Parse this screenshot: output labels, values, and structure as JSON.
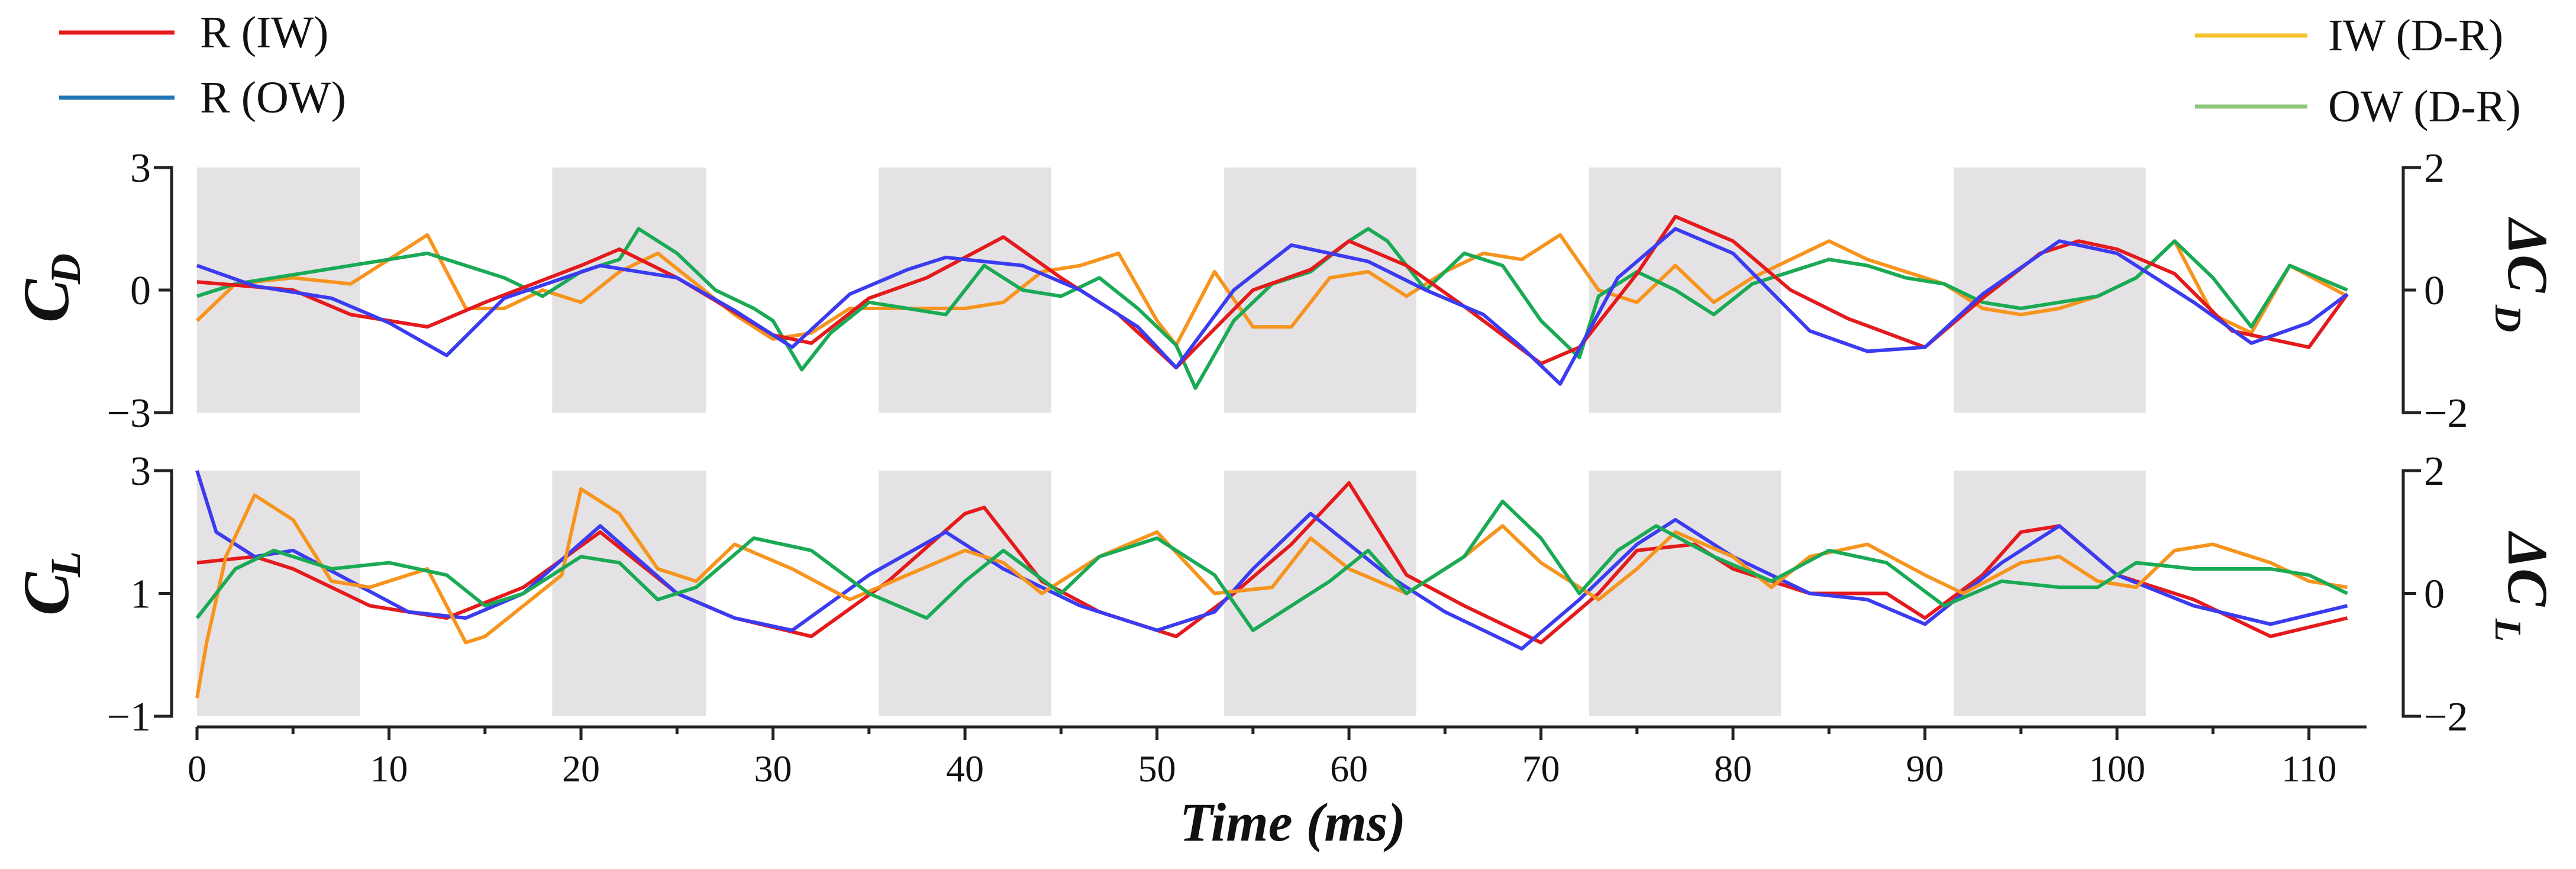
{
  "chart_data": {
    "type": "line",
    "xlabel": "Time (ms)",
    "x_ticks": [
      "0",
      "10",
      "20",
      "30",
      "40",
      "50",
      "60",
      "70",
      "80",
      "90",
      "100",
      "110"
    ],
    "xlim": [
      0,
      113
    ],
    "shaded_intervals": [
      [
        0,
        8.5
      ],
      [
        18.5,
        26.5
      ],
      [
        35.5,
        44.5
      ],
      [
        53.5,
        63.5
      ],
      [
        72.5,
        82.5
      ],
      [
        91.5,
        101.5
      ]
    ],
    "colors": {
      "r_iw": "#e41a1c",
      "r_ow": "#3b3bf0",
      "iw_dr": "#f7941d",
      "ow_dr": "#1aaa55",
      "shade": "#e4e2e4"
    },
    "legend": [
      {
        "label": "R (IW)",
        "color": "#e41a1c"
      },
      {
        "label": "R (OW)",
        "color": "#1f77b4"
      },
      {
        "label": "IW (D-R)",
        "color": "#f7c12b"
      },
      {
        "label": "OW (D-R)",
        "color": "#8dc87a"
      }
    ],
    "panels": [
      {
        "id": "drag",
        "ylabel_main": "C",
        "ylabel_sub": "D",
        "ylabel_right": "ΔC",
        "ylabel_right_sub": "D",
        "left_ticks": [
          "3",
          "0",
          "−3"
        ],
        "left_ylim": [
          -3,
          3
        ],
        "right_ticks": [
          "2",
          "0",
          "−2"
        ],
        "right_ylim": [
          -2,
          2
        ],
        "series": [
          {
            "name": "R (IW)",
            "axis": "left",
            "color": "#e41a1c",
            "x": [
              0,
              5,
              8,
              12,
              15,
              20,
              22,
              25,
              30,
              32,
              35,
              38,
              40,
              42,
              45,
              48,
              51,
              55,
              58,
              60,
              63,
              66,
              70,
              72,
              75,
              77,
              80,
              83,
              86,
              90,
              93,
              96,
              98,
              100,
              103,
              106,
              110,
              112
            ],
            "y": [
              0.2,
              0.0,
              -0.6,
              -0.9,
              -0.3,
              0.6,
              1.0,
              0.3,
              -1.1,
              -1.3,
              -0.2,
              0.3,
              0.8,
              1.3,
              0.3,
              -0.6,
              -1.9,
              0.0,
              0.5,
              1.2,
              0.6,
              -0.4,
              -1.8,
              -1.4,
              0.4,
              1.8,
              1.2,
              0.0,
              -0.7,
              -1.4,
              -0.2,
              0.9,
              1.2,
              1.0,
              0.4,
              -1.0,
              -1.4,
              -0.1
            ]
          },
          {
            "name": "R (OW)",
            "axis": "left",
            "color": "#3b3bf0",
            "x": [
              0,
              3,
              7,
              10,
              13,
              16,
              21,
              25,
              28,
              31,
              34,
              37,
              39,
              43,
              46,
              49,
              51,
              54,
              57,
              61,
              64,
              67,
              69,
              71,
              74,
              77,
              80,
              84,
              87,
              90,
              93,
              97,
              100,
              104,
              107,
              110,
              112
            ],
            "y": [
              0.6,
              0.1,
              -0.2,
              -0.8,
              -1.6,
              -0.2,
              0.6,
              0.3,
              -0.5,
              -1.4,
              -0.1,
              0.5,
              0.8,
              0.6,
              0.0,
              -0.9,
              -1.9,
              0.0,
              1.1,
              0.7,
              0.0,
              -0.6,
              -1.4,
              -2.3,
              0.3,
              1.5,
              0.9,
              -1.0,
              -1.5,
              -1.4,
              -0.1,
              1.2,
              0.9,
              -0.3,
              -1.3,
              -0.8,
              -0.1
            ]
          }
        ]
      },
      {
        "id": "lift",
        "ylabel_main": "C",
        "ylabel_sub": "L",
        "ylabel_right": "ΔC",
        "ylabel_right_sub": "L",
        "left_ticks": [
          "3",
          "1",
          "−1"
        ],
        "left_ylim": [
          -1,
          3
        ],
        "right_ticks": [
          "2",
          "0",
          "−2"
        ],
        "right_ylim": [
          -2,
          2
        ],
        "series": [
          {
            "name": "R (IW)",
            "axis": "left",
            "color": "#e41a1c",
            "x": [
              0,
              3,
              5,
              9,
              13,
              17,
              21,
              25,
              28,
              32,
              36,
              40,
              41,
              44,
              47,
              51,
              54,
              57,
              60,
              63,
              66,
              70,
              73,
              75,
              78,
              80,
              84,
              88,
              90,
              93,
              95,
              97,
              100,
              104,
              108,
              112
            ],
            "y": [
              1.5,
              1.6,
              1.4,
              0.8,
              0.6,
              1.1,
              2.0,
              1.0,
              0.6,
              0.3,
              1.2,
              2.3,
              2.4,
              1.2,
              0.7,
              0.3,
              1.0,
              1.8,
              2.8,
              1.3,
              0.8,
              0.2,
              1.0,
              1.7,
              1.8,
              1.4,
              1.0,
              1.0,
              0.6,
              1.3,
              2.0,
              2.1,
              1.3,
              0.9,
              0.3,
              0.6
            ]
          },
          {
            "name": "R (OW)",
            "axis": "left",
            "color": "#3b3bf0",
            "x": [
              0,
              1,
              3,
              5,
              8,
              11,
              14,
              17,
              21,
              25,
              28,
              31,
              35,
              39,
              42,
              46,
              50,
              53,
              55,
              58,
              62,
              65,
              69,
              72,
              75,
              77,
              80,
              84,
              87,
              90,
              94,
              97,
              100,
              104,
              108,
              112
            ],
            "y": [
              3.0,
              2.0,
              1.6,
              1.7,
              1.2,
              0.7,
              0.6,
              1.0,
              2.1,
              1.0,
              0.6,
              0.4,
              1.3,
              2.0,
              1.4,
              0.8,
              0.4,
              0.7,
              1.4,
              2.3,
              1.3,
              0.7,
              0.1,
              0.9,
              1.8,
              2.2,
              1.6,
              1.0,
              0.9,
              0.5,
              1.5,
              2.1,
              1.3,
              0.8,
              0.5,
              0.8
            ]
          },
          {
            "name": "IW (D-R)",
            "axis": "right",
            "color": "#f7941d",
            "x": [
              0,
              0.5,
              1.5,
              3,
              5,
              7,
              9,
              12,
              14,
              15,
              17,
              19,
              20,
              22,
              24,
              26,
              28,
              31,
              34,
              37,
              40,
              42,
              44,
              47,
              50,
              53,
              56,
              58,
              60,
              63,
              66,
              68,
              70,
              73,
              75,
              77,
              80,
              82,
              84,
              87,
              90,
              92,
              95,
              97,
              99,
              101,
              103,
              105,
              108,
              110,
              112
            ],
            "y": [
              -1.7,
              -0.8,
              0.6,
              1.6,
              1.2,
              0.2,
              0.1,
              0.4,
              -0.8,
              -0.7,
              -0.2,
              0.3,
              1.7,
              1.3,
              0.4,
              0.2,
              0.8,
              0.4,
              -0.1,
              0.3,
              0.7,
              0.5,
              0.0,
              0.6,
              1.0,
              0.0,
              0.1,
              0.9,
              0.4,
              0.0,
              0.6,
              1.1,
              0.5,
              -0.1,
              0.4,
              1.0,
              0.6,
              0.1,
              0.6,
              0.8,
              0.3,
              0.0,
              0.5,
              0.6,
              0.2,
              0.1,
              0.7,
              0.8,
              0.5,
              0.2,
              0.1
            ]
          },
          {
            "name": "OW (D-R)",
            "axis": "right",
            "color": "#1aaa55",
            "x": [
              0,
              2,
              4,
              7,
              10,
              13,
              15,
              17,
              20,
              22,
              24,
              26,
              29,
              32,
              35,
              38,
              40,
              42,
              45,
              47,
              50,
              53,
              55,
              57,
              59,
              61,
              63,
              66,
              68,
              70,
              72,
              74,
              76,
              79,
              82,
              85,
              88,
              91,
              94,
              97,
              99,
              101,
              104,
              108,
              110,
              112
            ],
            "y": [
              -0.4,
              0.4,
              0.7,
              0.4,
              0.5,
              0.3,
              -0.2,
              0.0,
              0.6,
              0.5,
              -0.1,
              0.1,
              0.9,
              0.7,
              0.0,
              -0.4,
              0.2,
              0.7,
              0.0,
              0.6,
              0.9,
              0.3,
              -0.6,
              -0.2,
              0.2,
              0.7,
              0.0,
              0.6,
              1.5,
              0.9,
              0.0,
              0.7,
              1.1,
              0.6,
              0.2,
              0.7,
              0.5,
              -0.2,
              0.2,
              0.1,
              0.1,
              0.5,
              0.4,
              0.4,
              0.3,
              0.0
            ]
          }
        ]
      }
    ],
    "extra_drag_series": [
      {
        "name": "IW (D-R)",
        "axis": "right",
        "color": "#f7941d",
        "x": [
          0,
          2,
          5,
          8,
          10,
          12,
          14,
          16,
          18,
          20,
          22,
          24,
          26,
          28,
          30,
          32,
          34,
          37,
          40,
          42,
          44,
          46,
          48,
          50,
          51,
          53,
          55,
          57,
          59,
          61,
          63,
          65,
          67,
          69,
          71,
          73,
          75,
          77,
          79,
          81,
          83,
          85,
          87,
          89,
          91,
          93,
          95,
          97,
          99,
          101,
          103,
          105,
          107,
          109,
          112
        ],
        "y": [
          -0.5,
          0.1,
          0.2,
          0.1,
          0.5,
          0.9,
          -0.3,
          -0.3,
          0.0,
          -0.2,
          0.3,
          0.6,
          0.1,
          -0.4,
          -0.8,
          -0.7,
          -0.3,
          -0.3,
          -0.3,
          -0.2,
          0.3,
          0.4,
          0.6,
          -0.5,
          -0.9,
          0.3,
          -0.6,
          -0.6,
          0.2,
          0.3,
          -0.1,
          0.3,
          0.6,
          0.5,
          0.9,
          0.0,
          -0.2,
          0.4,
          -0.2,
          0.2,
          0.5,
          0.8,
          0.5,
          0.3,
          0.1,
          -0.3,
          -0.4,
          -0.3,
          -0.1,
          0.2,
          0.8,
          -0.4,
          -0.7,
          0.4,
          -0.1
        ]
      },
      {
        "name": "OW (D-R)",
        "axis": "right",
        "color": "#1aaa55",
        "x": [
          0,
          2,
          4,
          6,
          8,
          10,
          12,
          14,
          16,
          18,
          20,
          22,
          23,
          25,
          27,
          29,
          30,
          31.5,
          33,
          35,
          37,
          39,
          41,
          43,
          45,
          47,
          49,
          51,
          52,
          54,
          56,
          58,
          60,
          61,
          62,
          64,
          66,
          68,
          70,
          72,
          73,
          75,
          77,
          79,
          81,
          83,
          85,
          87,
          89,
          91,
          93,
          95,
          97,
          99,
          101,
          103,
          105,
          107,
          109,
          112
        ],
        "y": [
          -0.1,
          0.1,
          0.2,
          0.3,
          0.4,
          0.5,
          0.6,
          0.4,
          0.2,
          -0.1,
          0.3,
          0.5,
          1.0,
          0.6,
          0.0,
          -0.3,
          -0.5,
          -1.3,
          -0.7,
          -0.2,
          -0.3,
          -0.4,
          0.4,
          0.0,
          -0.1,
          0.2,
          -0.3,
          -0.9,
          -1.6,
          -0.5,
          0.1,
          0.3,
          0.8,
          1.0,
          0.8,
          0.0,
          0.6,
          0.4,
          -0.5,
          -1.1,
          -0.1,
          0.3,
          0.0,
          -0.4,
          0.1,
          0.3,
          0.5,
          0.4,
          0.2,
          0.1,
          -0.2,
          -0.3,
          -0.2,
          -0.1,
          0.2,
          0.8,
          0.2,
          -0.6,
          0.4,
          0.0
        ]
      }
    ]
  }
}
